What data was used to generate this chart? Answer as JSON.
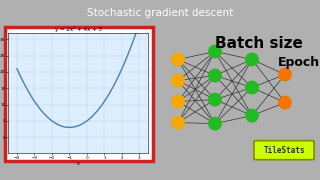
{
  "title": "Stochastic gradient descent",
  "title_fontsize": 7.5,
  "title_bg": "#a8a8a8",
  "bg_color": "#b0b0b0",
  "main_bg": "#ffffff",
  "parabola_equation": "y = 2x² + 4x + 5",
  "parabola_color": "#4a7fb5",
  "parabola_border": "#cc2222",
  "arrow_color": "#00aaaa",
  "batch_size_text": "Batch size",
  "epoch_text": "Epoch",
  "batch_fontsize": 11,
  "epoch_fontsize": 9,
  "nn_input_color": "#f5a800",
  "nn_hidden_color": "#22bb22",
  "nn_output_color": "#f57300",
  "nn_line_color": "#333333",
  "logo_bg": "#ccff00",
  "logo_border": "#888800",
  "logo_text": "TileStats",
  "logo_text_color": "#333300",
  "logo_fontsize": 5.5,
  "bottom_bar_color": "#a8a8a8"
}
